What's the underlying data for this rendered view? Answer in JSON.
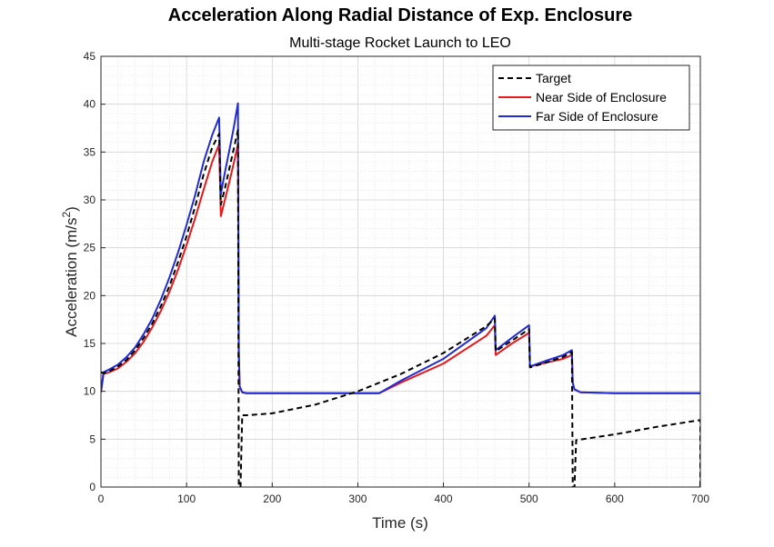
{
  "chart_data": {
    "type": "line",
    "title": "Acceleration Along Radial Distance of Exp. Enclosure",
    "subtitle": "Multi-stage Rocket Launch to LEO",
    "xlabel": "Time (s)",
    "ylabel": "Acceleration (m/s",
    "ylabel_sup": "2",
    "ylabel_close": ")",
    "xlim": [
      0,
      700
    ],
    "ylim": [
      0,
      45
    ],
    "xticks": [
      0,
      100,
      200,
      300,
      400,
      500,
      600,
      700
    ],
    "yticks": [
      0,
      5,
      10,
      15,
      20,
      25,
      30,
      35,
      40,
      45
    ],
    "grid": true,
    "minor_grid": true,
    "legend_position": "top-right",
    "series": [
      {
        "name": "Target",
        "color": "#000000",
        "dash": "dashed",
        "x": [
          0,
          3,
          10,
          20,
          30,
          40,
          50,
          60,
          70,
          80,
          90,
          100,
          110,
          120,
          130,
          138,
          140,
          145,
          150,
          155,
          160,
          161,
          163,
          165,
          170,
          200,
          250,
          300,
          350,
          400,
          450,
          460,
          461,
          480,
          500,
          501,
          520,
          540,
          550,
          551,
          553,
          555,
          600,
          650,
          700,
          700
        ],
        "y": [
          12,
          11.9,
          12.1,
          12.6,
          13.3,
          14.3,
          15.6,
          17.1,
          18.9,
          21.0,
          23.5,
          26.2,
          29.3,
          32.7,
          35.5,
          36.9,
          29.5,
          31.3,
          33.3,
          35.3,
          37.3,
          0,
          0,
          7.5,
          7.5,
          7.7,
          8.6,
          10.0,
          11.8,
          14.0,
          16.8,
          17.6,
          14.2,
          15.3,
          16.5,
          12.5,
          13.0,
          13.6,
          14.1,
          0,
          0,
          4.9,
          5.5,
          6.3,
          7.0,
          0
        ]
      },
      {
        "name": "Near Side of Enclosure",
        "color": "#e8191b",
        "dash": "solid",
        "x": [
          0,
          3,
          10,
          20,
          30,
          40,
          50,
          60,
          70,
          80,
          90,
          100,
          110,
          120,
          130,
          138,
          140,
          145,
          150,
          155,
          160,
          161,
          162,
          165,
          170,
          200,
          250,
          300,
          320,
          325,
          350,
          400,
          450,
          460,
          461,
          480,
          500,
          501,
          520,
          540,
          550,
          551,
          553,
          560,
          600,
          650,
          700
        ],
        "y": [
          9.9,
          11.8,
          12.0,
          12.4,
          13.1,
          14.0,
          15.2,
          16.7,
          18.4,
          20.4,
          22.7,
          25.3,
          28.1,
          31.1,
          34.0,
          35.8,
          28.3,
          30.1,
          31.9,
          33.8,
          35.8,
          14.0,
          10.5,
          9.9,
          9.8,
          9.8,
          9.8,
          9.8,
          9.8,
          9.8,
          10.9,
          12.9,
          15.8,
          16.9,
          13.8,
          15.0,
          16.1,
          12.6,
          13.0,
          13.4,
          13.8,
          10.9,
          10.2,
          9.9,
          9.8,
          9.8,
          9.8
        ]
      },
      {
        "name": "Far Side of Enclosure",
        "color": "#1f2bd6",
        "dash": "solid",
        "x": [
          0,
          3,
          10,
          20,
          30,
          40,
          50,
          60,
          70,
          80,
          90,
          100,
          110,
          120,
          130,
          138,
          140,
          145,
          150,
          155,
          160,
          161,
          162,
          165,
          170,
          200,
          250,
          300,
          320,
          325,
          350,
          400,
          450,
          460,
          461,
          480,
          500,
          501,
          520,
          540,
          550,
          551,
          553,
          560,
          600,
          650,
          700
        ],
        "y": [
          9.9,
          12.0,
          12.3,
          12.8,
          13.6,
          14.6,
          16.0,
          17.6,
          19.6,
          21.9,
          24.5,
          27.4,
          30.5,
          34.0,
          36.8,
          38.6,
          30.6,
          33.0,
          35.2,
          37.5,
          40.1,
          14.0,
          10.5,
          9.9,
          9.8,
          9.8,
          9.8,
          9.8,
          9.8,
          9.8,
          11.1,
          13.4,
          16.6,
          17.9,
          14.3,
          15.6,
          16.9,
          12.6,
          13.2,
          13.8,
          14.3,
          10.9,
          10.2,
          9.9,
          9.8,
          9.8,
          9.8
        ]
      }
    ]
  }
}
